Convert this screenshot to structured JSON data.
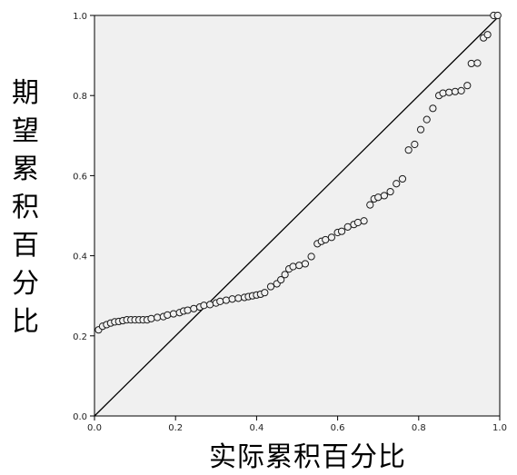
{
  "chart_data": {
    "type": "scatter",
    "title": "",
    "xlabel": "实际累积百分比",
    "ylabel": "期望累积百分比",
    "xlim": [
      0,
      1
    ],
    "ylim": [
      0,
      1
    ],
    "x_ticks": [
      "0.0",
      "0.2",
      "0.4",
      "0.6",
      "0.8",
      "1.0"
    ],
    "y_ticks": [
      "0.0",
      "0.2",
      "0.4",
      "0.6",
      "0.8",
      "1.0"
    ],
    "grid": false,
    "reference_line": {
      "from": [
        0,
        0
      ],
      "to": [
        1,
        1
      ]
    },
    "series": [
      {
        "marker": "open-circle",
        "points": [
          [
            0.01,
            0.215
          ],
          [
            0.02,
            0.224
          ],
          [
            0.03,
            0.228
          ],
          [
            0.04,
            0.232
          ],
          [
            0.05,
            0.235
          ],
          [
            0.06,
            0.236
          ],
          [
            0.07,
            0.238
          ],
          [
            0.08,
            0.24
          ],
          [
            0.09,
            0.24
          ],
          [
            0.1,
            0.24
          ],
          [
            0.11,
            0.24
          ],
          [
            0.12,
            0.24
          ],
          [
            0.13,
            0.24
          ],
          [
            0.14,
            0.243
          ],
          [
            0.155,
            0.246
          ],
          [
            0.17,
            0.248
          ],
          [
            0.18,
            0.252
          ],
          [
            0.195,
            0.255
          ],
          [
            0.21,
            0.258
          ],
          [
            0.22,
            0.262
          ],
          [
            0.23,
            0.264
          ],
          [
            0.245,
            0.268
          ],
          [
            0.26,
            0.272
          ],
          [
            0.27,
            0.276
          ],
          [
            0.285,
            0.278
          ],
          [
            0.3,
            0.282
          ],
          [
            0.31,
            0.286
          ],
          [
            0.325,
            0.289
          ],
          [
            0.34,
            0.292
          ],
          [
            0.355,
            0.294
          ],
          [
            0.37,
            0.296
          ],
          [
            0.38,
            0.298
          ],
          [
            0.39,
            0.3
          ],
          [
            0.4,
            0.302
          ],
          [
            0.41,
            0.304
          ],
          [
            0.42,
            0.308
          ],
          [
            0.435,
            0.323
          ],
          [
            0.45,
            0.33
          ],
          [
            0.46,
            0.34
          ],
          [
            0.47,
            0.353
          ],
          [
            0.48,
            0.367
          ],
          [
            0.49,
            0.373
          ],
          [
            0.505,
            0.376
          ],
          [
            0.52,
            0.38
          ],
          [
            0.535,
            0.398
          ],
          [
            0.55,
            0.43
          ],
          [
            0.56,
            0.436
          ],
          [
            0.57,
            0.44
          ],
          [
            0.585,
            0.446
          ],
          [
            0.6,
            0.458
          ],
          [
            0.61,
            0.461
          ],
          [
            0.625,
            0.472
          ],
          [
            0.64,
            0.478
          ],
          [
            0.65,
            0.483
          ],
          [
            0.665,
            0.487
          ],
          [
            0.68,
            0.527
          ],
          [
            0.69,
            0.542
          ],
          [
            0.7,
            0.546
          ],
          [
            0.715,
            0.55
          ],
          [
            0.73,
            0.56
          ],
          [
            0.745,
            0.58
          ],
          [
            0.76,
            0.592
          ],
          [
            0.775,
            0.664
          ],
          [
            0.79,
            0.678
          ],
          [
            0.805,
            0.715
          ],
          [
            0.82,
            0.74
          ],
          [
            0.835,
            0.768
          ],
          [
            0.85,
            0.8
          ],
          [
            0.86,
            0.806
          ],
          [
            0.875,
            0.808
          ],
          [
            0.89,
            0.81
          ],
          [
            0.905,
            0.812
          ],
          [
            0.92,
            0.825
          ],
          [
            0.93,
            0.88
          ],
          [
            0.945,
            0.881
          ],
          [
            0.96,
            0.944
          ],
          [
            0.97,
            0.952
          ],
          [
            0.985,
            1.0
          ],
          [
            0.995,
            1.0
          ]
        ]
      }
    ],
    "colors": {
      "plot_background": "#f0f0f0",
      "axes": "#000000",
      "marker_stroke": "#1a1a1a",
      "marker_fill": "#f0f0f0",
      "line": "#000000"
    }
  }
}
